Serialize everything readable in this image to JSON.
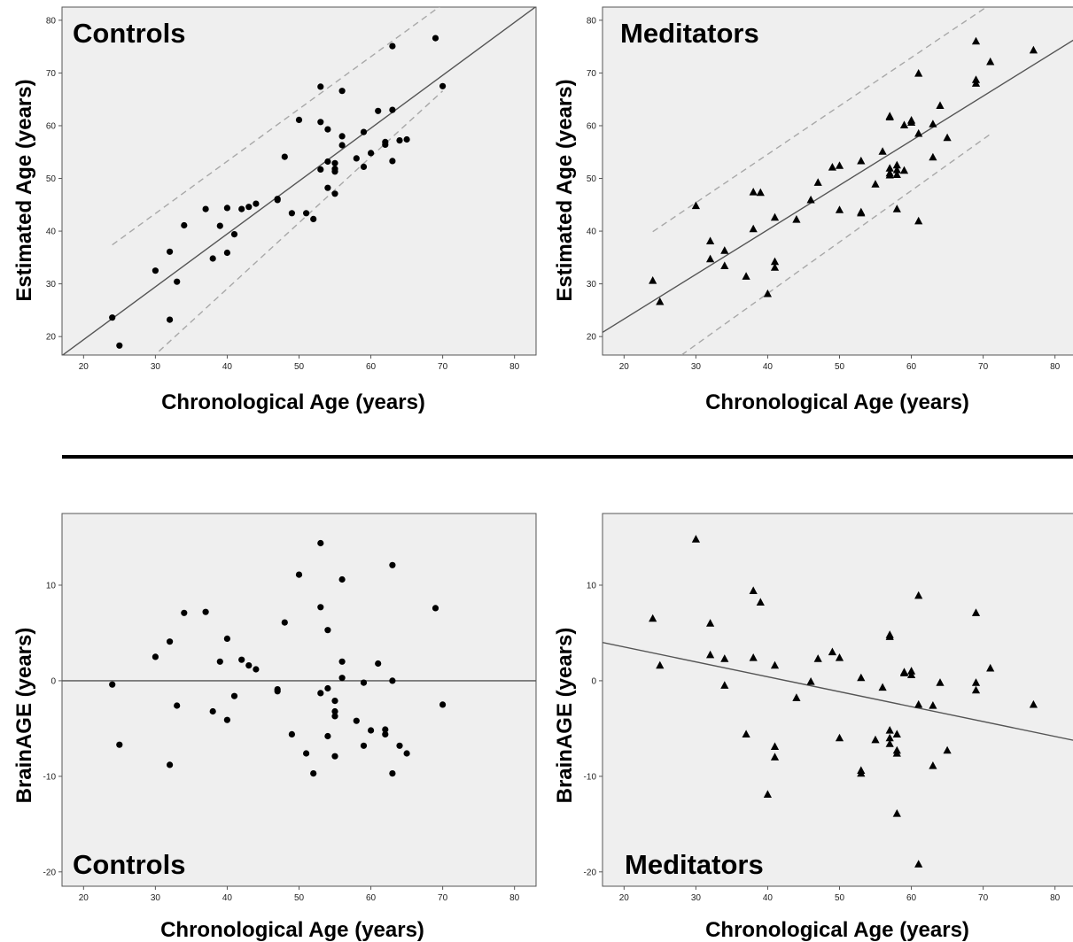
{
  "chart_data": [
    {
      "type": "scatter",
      "title": "Controls",
      "xlabel": "Chronological Age (years)",
      "ylabel": "Estimated Age (years)",
      "xlim": [
        17,
        83
      ],
      "ylim": [
        16.5,
        82.5
      ],
      "xticks": [
        "20",
        "30",
        "40",
        "50",
        "60",
        "70",
        "80"
      ],
      "yticks": [
        "20",
        "30",
        "40",
        "50",
        "60",
        "70",
        "80"
      ],
      "marker": "circle",
      "grid": false,
      "series": [
        {
          "x": [
            24,
            25,
            30,
            32,
            32,
            33,
            34,
            37,
            38,
            39,
            40,
            40,
            41,
            42,
            43,
            44,
            47,
            47,
            48,
            49,
            50,
            51,
            52,
            53,
            53,
            53,
            54,
            54,
            54,
            55,
            55,
            55,
            55,
            56,
            56,
            56,
            58,
            59,
            59,
            60,
            61,
            62,
            62,
            63,
            63,
            63,
            64,
            65,
            69,
            70
          ],
          "y": [
            23.6,
            18.3,
            32.5,
            36.1,
            23.2,
            30.4,
            41.1,
            44.2,
            34.8,
            41.0,
            44.4,
            35.9,
            39.4,
            44.2,
            44.6,
            45.2,
            46.1,
            45.9,
            54.1,
            43.4,
            61.1,
            43.4,
            42.3,
            67.4,
            60.7,
            51.7,
            59.3,
            53.2,
            48.2,
            52.9,
            51.8,
            51.3,
            47.1,
            66.6,
            58.0,
            56.3,
            53.8,
            58.8,
            52.2,
            54.8,
            62.8,
            56.9,
            56.4,
            75.1,
            63.0,
            53.3,
            57.2,
            57.4,
            76.6,
            67.5
          ]
        }
      ],
      "lines": [
        {
          "style": "solid",
          "x": [
            17,
            83
          ],
          "y": [
            16.4,
            82.6
          ]
        },
        {
          "style": "dashed",
          "x": [
            24,
            70
          ],
          "y": [
            37.4,
            83.0
          ]
        },
        {
          "style": "dashed",
          "x": [
            30.5,
            70
          ],
          "y": [
            17.2,
            66.6
          ]
        }
      ]
    },
    {
      "type": "scatter",
      "title": "Meditators",
      "xlabel": "Chronological Age (years)",
      "ylabel": "Estimated Age (years)",
      "xlim": [
        17,
        83
      ],
      "ylim": [
        16.5,
        82.5
      ],
      "xticks": [
        "20",
        "30",
        "40",
        "50",
        "60",
        "70",
        "80"
      ],
      "yticks": [
        "20",
        "30",
        "40",
        "50",
        "60",
        "70",
        "80"
      ],
      "marker": "triangle",
      "grid": false,
      "series": [
        {
          "x": [
            24,
            25,
            30,
            32,
            32,
            34,
            34,
            37,
            38,
            38,
            39,
            40,
            41,
            41,
            41,
            44,
            46,
            47,
            49,
            50,
            50,
            53,
            53,
            53,
            55,
            56,
            57,
            57,
            57,
            57,
            57,
            58,
            58,
            58,
            58,
            59,
            59,
            60,
            60,
            61,
            61,
            61,
            63,
            63,
            64,
            65,
            69,
            69,
            69,
            71,
            77
          ],
          "y": [
            30.6,
            26.6,
            44.8,
            38.1,
            34.7,
            36.3,
            33.4,
            31.4,
            47.4,
            40.4,
            47.3,
            28.1,
            42.6,
            34.2,
            33.1,
            42.2,
            45.9,
            49.2,
            52.1,
            52.4,
            44.0,
            53.3,
            43.4,
            43.6,
            48.9,
            55.1,
            61.8,
            61.6,
            51.9,
            51.0,
            50.6,
            52.5,
            51.6,
            50.7,
            44.2,
            60.1,
            51.5,
            60.6,
            61.0,
            69.9,
            58.5,
            41.9,
            54.0,
            60.3,
            63.8,
            57.7,
            76.0,
            68.7,
            68.0,
            72.1,
            74.3
          ]
        }
      ],
      "lines": [
        {
          "style": "solid",
          "x": [
            17,
            83
          ],
          "y": [
            20.8,
            76.6
          ]
        },
        {
          "style": "dashed",
          "x": [
            24,
            71
          ],
          "y": [
            39.9,
            83.0
          ]
        },
        {
          "style": "dashed",
          "x": [
            28,
            71
          ],
          "y": [
            16.5,
            58.4
          ]
        }
      ]
    },
    {
      "type": "scatter",
      "title": "Controls",
      "xlabel": "Chronological Age (years)",
      "ylabel": "BrainAGE (years)",
      "xlim": [
        17,
        83
      ],
      "ylim": [
        -21.5,
        17.5
      ],
      "xticks": [
        "20",
        "30",
        "40",
        "50",
        "60",
        "70",
        "80"
      ],
      "yticks": [
        "-20",
        "-10",
        "0",
        "10"
      ],
      "marker": "circle",
      "grid": false,
      "series": [
        {
          "x": [
            24,
            25,
            30,
            32,
            32,
            33,
            34,
            37,
            38,
            39,
            40,
            40,
            41,
            42,
            43,
            44,
            47,
            47,
            48,
            49,
            50,
            51,
            52,
            53,
            53,
            53,
            54,
            54,
            54,
            55,
            55,
            55,
            55,
            56,
            56,
            56,
            58,
            59,
            59,
            60,
            61,
            62,
            62,
            63,
            63,
            63,
            64,
            65,
            69,
            70
          ],
          "y": [
            -0.4,
            -6.7,
            2.5,
            4.1,
            -8.8,
            -2.6,
            7.1,
            7.2,
            -3.2,
            2.0,
            4.4,
            -4.1,
            -1.6,
            2.2,
            1.6,
            1.2,
            -0.9,
            -1.1,
            6.1,
            -5.6,
            11.1,
            -7.6,
            -9.7,
            14.4,
            7.7,
            -1.3,
            5.3,
            -0.8,
            -5.8,
            -2.1,
            -3.2,
            -3.7,
            -7.9,
            10.6,
            2.0,
            0.3,
            -4.2,
            -0.2,
            -6.8,
            -5.2,
            1.8,
            -5.1,
            -5.6,
            12.1,
            0.0,
            -9.7,
            -6.8,
            -7.6,
            7.6,
            -2.5
          ]
        }
      ],
      "lines": [
        {
          "style": "solid",
          "x": [
            17,
            83
          ],
          "y": [
            0,
            0
          ]
        }
      ]
    },
    {
      "type": "scatter",
      "title": "Meditators",
      "xlabel": "Chronological Age (years)",
      "ylabel": "BrainAGE (years)",
      "xlim": [
        17,
        83
      ],
      "ylim": [
        -21.5,
        17.5
      ],
      "xticks": [
        "20",
        "30",
        "40",
        "50",
        "60",
        "70",
        "80"
      ],
      "yticks": [
        "-20",
        "-10",
        "0",
        "10"
      ],
      "marker": "triangle",
      "grid": false,
      "series": [
        {
          "x": [
            24,
            25,
            30,
            32,
            32,
            34,
            34,
            37,
            38,
            38,
            39,
            40,
            41,
            41,
            41,
            44,
            46,
            47,
            49,
            50,
            50,
            53,
            53,
            53,
            55,
            56,
            57,
            57,
            57,
            57,
            57,
            58,
            58,
            58,
            58,
            59,
            59,
            60,
            60,
            61,
            61,
            61,
            63,
            63,
            64,
            65,
            69,
            69,
            69,
            71,
            77
          ],
          "y": [
            6.5,
            1.6,
            14.8,
            6.0,
            2.7,
            2.3,
            -0.5,
            -5.6,
            9.4,
            2.4,
            8.2,
            -11.9,
            1.6,
            -6.9,
            -8.0,
            -1.8,
            -0.1,
            2.3,
            3.0,
            2.4,
            -6.0,
            0.3,
            -9.4,
            -9.7,
            -6.2,
            -0.7,
            4.8,
            4.6,
            -5.2,
            -6.0,
            -6.6,
            -5.6,
            -7.3,
            -13.9,
            -7.6,
            0.8,
            0.9,
            0.6,
            1.0,
            8.9,
            -2.5,
            -19.2,
            -2.6,
            -8.9,
            -0.2,
            -7.3,
            7.1,
            -0.2,
            -1.0,
            1.3,
            -2.5
          ]
        }
      ],
      "lines": [
        {
          "style": "solid",
          "x": [
            17,
            83
          ],
          "y": [
            4.0,
            -6.3
          ]
        }
      ]
    }
  ]
}
